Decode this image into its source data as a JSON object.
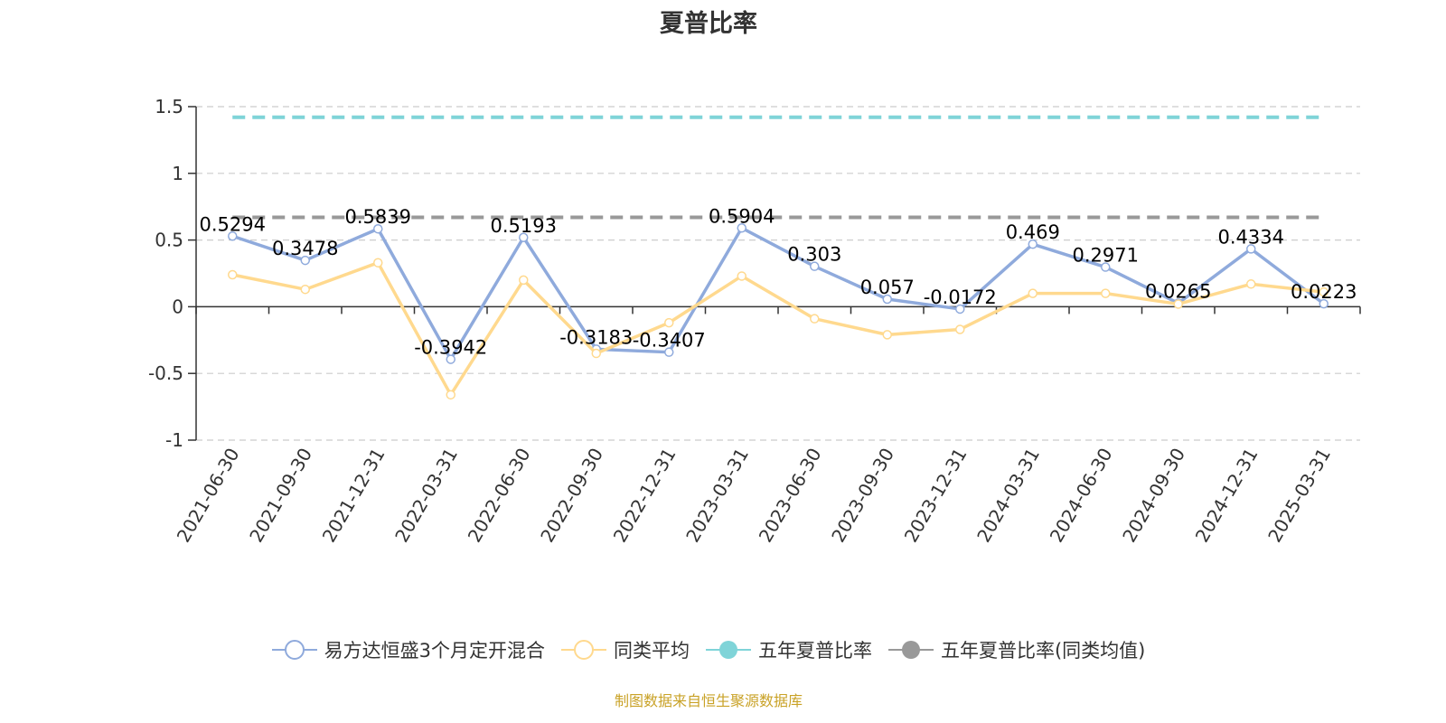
{
  "title": "夏普比率",
  "source_note": "制图数据来自恒生聚源数据库",
  "chart_data": {
    "type": "line",
    "title": "夏普比率",
    "categories": [
      "2021-06-30",
      "2021-09-30",
      "2021-12-31",
      "2022-03-31",
      "2022-06-30",
      "2022-09-30",
      "2022-12-31",
      "2023-03-31",
      "2023-06-30",
      "2023-09-30",
      "2023-12-31",
      "2024-03-31",
      "2024-06-30",
      "2024-09-30",
      "2024-12-31",
      "2025-03-31"
    ],
    "y_ticks": [
      "1.5",
      "1",
      "0.5",
      "0",
      "-0.5",
      "-1"
    ],
    "ylim": [
      -1,
      1.5
    ],
    "grid": true,
    "legend_position": "bottom",
    "series": [
      {
        "name": "易方达恒盛3个月定开混合",
        "color": "#8faadc",
        "marker": "circle",
        "values": [
          0.5294,
          0.3478,
          0.5839,
          -0.3942,
          0.5193,
          -0.3183,
          -0.3407,
          0.5904,
          0.303,
          0.057,
          -0.0172,
          0.469,
          0.2971,
          0.0265,
          0.4334,
          0.0223
        ],
        "labels": [
          "0.5294",
          "0.3478",
          "0.5839",
          "-0.3942",
          "0.5193",
          "-0.3183",
          "-0.3407",
          "0.5904",
          "0.303",
          "0.057",
          "-0.0172",
          "0.469",
          "0.2971",
          "0.0265",
          "0.4334",
          "0.0223"
        ]
      },
      {
        "name": "同类平均",
        "color": "#ffd98e",
        "marker": "circle",
        "values": [
          0.24,
          0.13,
          0.33,
          -0.66,
          0.2,
          -0.35,
          -0.12,
          0.23,
          -0.09,
          -0.21,
          -0.17,
          0.1,
          0.1,
          0.02,
          0.17,
          0.11
        ]
      },
      {
        "name": "五年夏普比率",
        "color": "#7fd4d8",
        "marker": "filled",
        "style": "dashed",
        "value": 1.42
      },
      {
        "name": "五年夏普比率(同类均值)",
        "color": "#999999",
        "marker": "filled",
        "style": "dashed",
        "value": 0.67
      }
    ]
  }
}
